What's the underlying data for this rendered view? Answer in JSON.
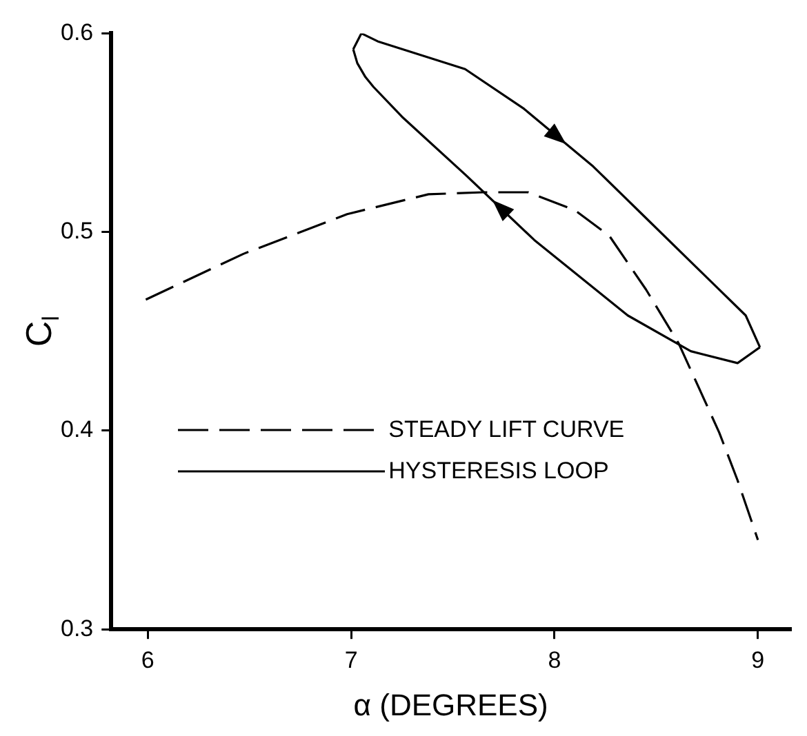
{
  "chart_data": {
    "type": "line",
    "xlabel": "α (DEGREES)",
    "ylabel": "C$_{l}$",
    "xlim": [
      5.82,
      9.16
    ],
    "ylim": [
      0.3,
      0.6
    ],
    "xticks": [
      6,
      7,
      8,
      9
    ],
    "yticks": [
      0.3,
      0.4,
      0.5,
      0.6
    ],
    "grid": false,
    "legend": "bottom left",
    "marker": "none",
    "series": [
      {
        "name": "STEADY LIFT CURVE",
        "color": "#000000",
        "line_style": "dashed",
        "x": [
          5.99,
          6.47,
          6.98,
          7.38,
          7.65,
          7.87,
          8.1,
          8.27,
          8.45,
          8.61,
          8.81,
          8.9,
          9.0
        ],
        "values": [
          0.466,
          0.489,
          0.509,
          0.519,
          0.52,
          0.52,
          0.511,
          0.498,
          0.471,
          0.444,
          0.399,
          0.375,
          0.345
        ]
      },
      {
        "name": "HYSTERESIS LOOP",
        "color": "#000000",
        "line_style": "solid",
        "x": [
          7.01,
          7.05,
          7.13,
          7.56,
          7.85,
          8.19,
          8.45,
          8.72,
          8.94,
          9.01
        ],
        "values": [
          0.592,
          0.6,
          0.596,
          0.582,
          0.562,
          0.533,
          0.507,
          0.48,
          0.458,
          0.442
        ]
      },
      {
        "color": "#000000",
        "line_style": "solid",
        "x": [
          9.01,
          8.9,
          8.67,
          8.36,
          7.9,
          7.56,
          7.25,
          7.11,
          7.07,
          7.03,
          7.01
        ],
        "values": [
          0.442,
          0.434,
          0.44,
          0.458,
          0.496,
          0.529,
          0.558,
          0.573,
          0.578,
          0.585,
          0.592
        ]
      }
    ]
  }
}
